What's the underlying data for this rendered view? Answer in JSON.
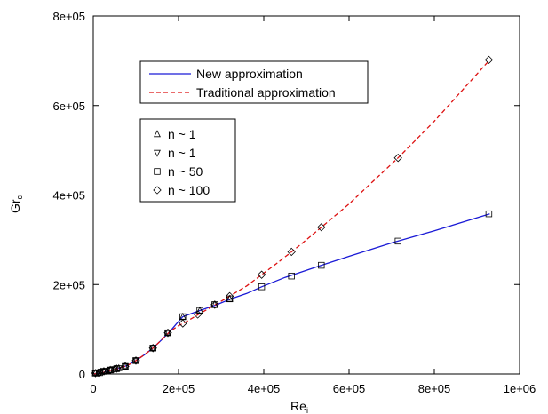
{
  "chart_data": {
    "type": "line",
    "xlabel": "Re",
    "xlabel_sub": "i",
    "ylabel": "Gr",
    "ylabel_sub": "c",
    "xlim": [
      0,
      1000000
    ],
    "ylim": [
      0,
      800000
    ],
    "x_ticks": [
      0,
      200000,
      400000,
      600000,
      800000,
      1000000
    ],
    "x_tick_labels": [
      "0",
      "2e+05",
      "4e+05",
      "6e+05",
      "8e+05",
      "1e+06"
    ],
    "y_ticks": [
      0,
      200000,
      400000,
      600000,
      800000
    ],
    "y_tick_labels": [
      "0",
      "2e+05",
      "4e+05",
      "6e+05",
      "8e+05"
    ],
    "grid": false,
    "line_legend_placement": "upper-left",
    "marker_legend_placement": "upper-left",
    "series": [
      {
        "name": "New approximation",
        "kind": "line",
        "color": "#1a1ad6",
        "dash": "solid",
        "x": [
          0,
          10000,
          20000,
          30000,
          40000,
          50000,
          60000,
          70000,
          80000,
          100000,
          120000,
          140000,
          160000,
          180000,
          195000,
          210000,
          230000,
          250000,
          290000,
          320000,
          360000,
          395000,
          450000,
          535000,
          600000,
          700000,
          800000,
          930000
        ],
        "y": [
          0,
          1000,
          3000,
          5000,
          8000,
          10000,
          13000,
          16000,
          19000,
          30000,
          43000,
          58000,
          76000,
          95000,
          112000,
          128000,
          135000,
          142000,
          155000,
          167000,
          180000,
          195000,
          216000,
          243000,
          263000,
          293000,
          320000,
          358000
        ]
      },
      {
        "name": "Traditional approximation",
        "kind": "line",
        "color": "#dd1111",
        "dash": "dashed",
        "x": [
          0,
          10000,
          20000,
          30000,
          40000,
          50000,
          60000,
          70000,
          80000,
          100000,
          120000,
          140000,
          160000,
          180000,
          200000,
          215000,
          250000,
          290000,
          320000,
          360000,
          395000,
          430000,
          465000,
          500000,
          535000,
          600000,
          650000,
          715000,
          800000,
          930000
        ],
        "y": [
          0,
          1000,
          3000,
          5000,
          8000,
          10000,
          13000,
          16000,
          19000,
          30000,
          43000,
          58000,
          76000,
          95000,
          108000,
          115000,
          135000,
          157000,
          174000,
          197000,
          222000,
          247000,
          273000,
          300000,
          328000,
          380000,
          425000,
          483000,
          565000,
          702000
        ]
      },
      {
        "name": "n ~ 1",
        "kind": "markers",
        "marker": "triangle-up",
        "color": "#000000",
        "x": [
          5000,
          12000,
          18000,
          25000,
          32000,
          40000,
          50000,
          60000,
          75000,
          100000,
          140000,
          175000,
          210000,
          250000,
          285000,
          320000
        ],
        "y": [
          2000,
          3000,
          5000,
          6000,
          7000,
          9000,
          11000,
          13000,
          17000,
          30000,
          58000,
          92000,
          128000,
          142000,
          155000,
          168000
        ]
      },
      {
        "name": "n ~ 1",
        "kind": "markers",
        "marker": "triangle-down",
        "color": "#000000",
        "x": [
          5000,
          12000,
          18000,
          25000,
          32000,
          40000,
          50000,
          60000,
          75000,
          100000,
          140000,
          175000
        ],
        "y": [
          2000,
          3000,
          5000,
          6000,
          7000,
          9000,
          11000,
          13000,
          17000,
          30000,
          58000,
          92000
        ]
      },
      {
        "name": "n ~ 50",
        "kind": "markers",
        "marker": "square",
        "color": "#000000",
        "x": [
          5000,
          15000,
          25000,
          40000,
          55000,
          75000,
          100000,
          140000,
          175000,
          210000,
          250000,
          285000,
          320000,
          395000,
          465000,
          535000,
          715000,
          928000
        ],
        "y": [
          2000,
          3000,
          6000,
          9000,
          12000,
          17000,
          30000,
          58000,
          92000,
          128000,
          142000,
          155000,
          168000,
          195000,
          219000,
          243000,
          297000,
          358000
        ]
      },
      {
        "name": "n ~ 100",
        "kind": "markers",
        "marker": "diamond",
        "color": "#000000",
        "x": [
          5000,
          15000,
          25000,
          40000,
          55000,
          75000,
          100000,
          140000,
          175000,
          210000,
          245000,
          285000,
          320000,
          395000,
          465000,
          535000,
          715000,
          928000
        ],
        "y": [
          2000,
          3000,
          6000,
          9000,
          12000,
          17000,
          30000,
          58000,
          92000,
          113000,
          133000,
          155000,
          174000,
          222000,
          273000,
          328000,
          483000,
          702000
        ]
      }
    ]
  }
}
